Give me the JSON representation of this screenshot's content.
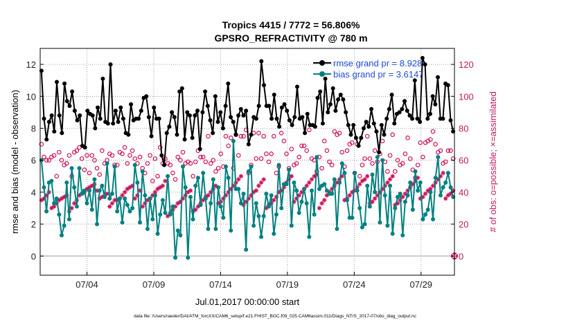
{
  "chart_data": {
    "type": "line",
    "title": "Tropics 4415 / 7772 = 56.806%",
    "subtitle": "GPSRO_REFRACTIVITY @ 780 m",
    "xlabel": "Jul.01,2017 00:00:00 start",
    "ylabel": "rmse and bias (model - observation)",
    "ylabel_right": "# of obs: o=possible; ×=assimilated",
    "footnote": "data file: /Users/raeder/DAI/ATM_forcXX/CAM6_setup/f.e21.FHIST_BGC.f09_025.CAM6assim.011/Diags_NTrS_2017-07/obs_diag_output.nc",
    "xlim": [
      0.5,
      31.5
    ],
    "ylim": [
      -1.2,
      13
    ],
    "ylim_right": [
      -12,
      130
    ],
    "xticks": [
      {
        "label": "07/04",
        "value": 4
      },
      {
        "label": "07/09",
        "value": 9
      },
      {
        "label": "07/14",
        "value": 14
      },
      {
        "label": "07/19",
        "value": 19
      },
      {
        "label": "07/24",
        "value": 24
      },
      {
        "label": "07/29",
        "value": 29
      }
    ],
    "yticks": [
      0,
      2,
      4,
      6,
      8,
      10,
      12
    ],
    "yticks_right": [
      0,
      20,
      40,
      60,
      80,
      100,
      120
    ],
    "legend": [
      "rmse grand pr = 8.928",
      "bias grand pr = 3.6147"
    ],
    "colors": {
      "rmse": "#000000",
      "bias": "#008080",
      "obs": "#d0145a"
    },
    "series": [
      {
        "name": "rmse grand pr = 8.928",
        "axis": "left",
        "values": [
          11.6,
          8.6,
          7.3,
          8.4,
          8.8,
          7.8,
          10.9,
          8.8,
          7.7,
          10.8,
          9.7,
          9.4,
          10.3,
          9.1,
          8.5,
          8.8,
          6.9,
          6.8,
          9.1,
          8.9,
          8.8,
          8.0,
          9.3,
          8.6,
          11.1,
          8.4,
          8.3,
          12.0,
          8.3,
          9.1,
          8.4,
          9.3,
          8.6,
          7.7,
          7.6,
          9.5,
          8.5,
          8.6,
          8.6,
          9.1,
          9.9,
          10.0,
          8.7,
          7.5,
          9.3,
          8.6,
          8.6,
          6.3,
          5.7,
          7.7,
          8.1,
          9.0,
          8.7,
          7.6,
          10.3,
          10.5,
          7.3,
          9.0,
          8.8,
          7.4,
          8.8,
          9.1,
          6.7,
          9.0,
          10.3,
          9.4,
          8.5,
          7.7,
          10.0,
          8.4,
          9.0,
          8.0,
          9.4,
          10.8,
          8.7,
          8.4,
          7.6,
          8.8,
          9.2,
          8.8,
          9.1,
          7.0,
          7.6,
          8.7,
          8.6,
          9.4,
          12.2,
          10.7,
          9.4,
          9.4,
          8.6,
          10.1,
          8.6,
          8.1,
          9.3,
          9.5,
          9.1,
          8.5,
          8.2,
          8.7,
          10.6,
          8.6,
          8.7,
          7.7,
          8.9,
          8.2,
          8.2,
          8.1,
          9.9,
          10.3,
          8.3,
          11.1,
          9.0,
          9.5,
          10.5,
          9.1,
          9.8,
          10.1,
          9.8,
          9.0,
          8.2,
          7.6,
          8.2,
          7.4,
          6.9,
          7.4,
          8.0,
          8.4,
          8.1,
          9.2,
          8.3,
          7.8,
          6.5,
          8.2,
          7.6,
          8.6,
          9.2,
          10.1,
          8.3,
          8.9,
          9.0,
          9.2,
          9.7,
          9.1,
          8.8,
          8.6,
          11.0,
          8.6,
          8.4,
          12.4,
          12.0,
          8.6,
          8.9,
          10.0,
          9.5,
          11.2,
          8.6,
          8.6,
          10.8,
          10.7,
          8.5,
          7.8
        ]
      },
      {
        "name": "bias grand pr = 3.6147",
        "axis": "left",
        "values": [
          6.0,
          4.3,
          2.8,
          4.6,
          4.7,
          3.3,
          3.6,
          2.6,
          1.3,
          1.9,
          4.6,
          2.3,
          5.5,
          4.3,
          3.1,
          5.5,
          3.9,
          4.1,
          3.3,
          4.1,
          2.9,
          4.8,
          2.0,
          4.1,
          4.4,
          3.7,
          5.8,
          3.6,
          3.9,
          5.6,
          2.8,
          3.6,
          2.1,
          3.6,
          3.2,
          2.8,
          3.0,
          5.7,
          4.6,
          2.1,
          5.3,
          3.8,
          1.7,
          3.6,
          2.3,
          3.8,
          1.4,
          2.6,
          3.5,
          2.7,
          5.0,
          2.6,
          3.1,
          -0.1,
          1.6,
          1.3,
          5.6,
          4.3,
          -0.1,
          3.7,
          2.3,
          4.4,
          4.9,
          3.2,
          5.2,
          3.6,
          1.7,
          3.3,
          4.8,
          1.7,
          4.3,
          3.1,
          2.4,
          5.6,
          4.9,
          1.6,
          7.2,
          4.2,
          4.2,
          3.3,
          3.9,
          0.4,
          5.3,
          5.6,
          1.9,
          3.3,
          2.5,
          1.2,
          2.5,
          3.9,
          3.1,
          3.8,
          1.4,
          2.6,
          5.7,
          3.0,
          4.5,
          4.5,
          5.4,
          1.9,
          4.6,
          4.1,
          2.7,
          3.4,
          4.2,
          3.3,
          1.2,
          4.1,
          2.6,
          6.2,
          4.2,
          4.4,
          4.5,
          4.1,
          3.9,
          3.9,
          4.8,
          1.7,
          4.6,
          5.8,
          5.2,
          3.5,
          2.4,
          2.4,
          5.2,
          4.1,
          3.0,
          1.8,
          2.0,
          4.4,
          3.1,
          5.1,
          4.0,
          6.2,
          2.1,
          6.0,
          3.8,
          1.9,
          4.4,
          1.4,
          3.0,
          3.7,
          3.9,
          1.3,
          3.4,
          3.8,
          4.6,
          2.9,
          5.3,
          4.1,
          4.6,
          2.3,
          2.6,
          2.9,
          4.0,
          2.3,
          4.9,
          6.2,
          3.8,
          4.3,
          4.6,
          5.2,
          4.3,
          3.7
        ]
      },
      {
        "name": "possible",
        "axis": "right",
        "values": [
          70,
          62,
          60,
          60,
          62,
          63,
          50,
          65,
          60,
          57,
          58,
          63,
          50,
          65,
          66,
          68,
          61,
          54,
          63,
          52,
          63,
          60,
          55,
          51,
          66,
          58,
          60,
          64,
          63,
          57,
          57,
          65,
          64,
          68,
          58,
          63,
          66,
          61,
          58,
          62,
          55,
          52,
          58,
          63,
          47,
          61,
          50,
          68,
          58,
          61,
          58,
          57,
          52,
          48,
          62,
          60,
          65,
          58,
          59,
          58,
          50,
          59,
          66,
          62,
          62,
          59,
          75,
          58,
          60,
          53,
          55,
          64,
          56,
          75,
          69,
          74,
          55,
          76,
          63,
          75,
          75,
          79,
          52,
          57,
          77,
          61,
          77,
          61,
          75,
          64,
          59,
          64,
          75,
          52,
          56,
          77,
          72,
          64,
          55,
          67,
          57,
          58,
          62,
          69,
          69,
          66,
          79,
          61,
          60,
          53,
          62,
          55,
          72,
          66,
          59,
          57,
          78,
          76,
          77,
          65,
          56,
          66,
          70,
          71,
          52,
          70,
          50,
          57,
          61,
          75,
          61,
          58,
          66,
          59,
          64,
          72,
          59,
          53,
          63,
          76,
          53,
          60,
          57,
          58,
          64,
          74,
          61,
          54,
          49,
          57,
          71,
          62,
          71,
          72,
          73,
          78,
          70,
          65,
          66,
          58,
          59,
          66,
          66,
          61
        ]
      },
      {
        "name": "assimilated",
        "axis": "right",
        "values": [
          35,
          36,
          38,
          40,
          30,
          31,
          33,
          35,
          36,
          37,
          38,
          28,
          30,
          33,
          35,
          38,
          39,
          40,
          42,
          43,
          44,
          45,
          41,
          36,
          37,
          38,
          39,
          31,
          33,
          35,
          35,
          36,
          38,
          40,
          42,
          43,
          44,
          36,
          38,
          41,
          31,
          33,
          35,
          36,
          38,
          40,
          42,
          43,
          44,
          47,
          25,
          27,
          29,
          31,
          33,
          34,
          36,
          38,
          40,
          41,
          28,
          29,
          31,
          33,
          35,
          37,
          38,
          40,
          42,
          44,
          33,
          34,
          36,
          38,
          40,
          42,
          44,
          46,
          48,
          50,
          32,
          34,
          36,
          38,
          40,
          41,
          44,
          46,
          48,
          30,
          32,
          33,
          35,
          37,
          40,
          41,
          43,
          46,
          48,
          50,
          34,
          36,
          38,
          40,
          42,
          44,
          46,
          48,
          50,
          51,
          30,
          33,
          35,
          38,
          40,
          42,
          44,
          46,
          48,
          50,
          35,
          36,
          38,
          40,
          41,
          43,
          45,
          47,
          48,
          50,
          33,
          34,
          36,
          38,
          40,
          42,
          44,
          46,
          48,
          50,
          32,
          33,
          35,
          37,
          39,
          41,
          43,
          45,
          47,
          49,
          36,
          37,
          39,
          41,
          42,
          44,
          46,
          48,
          50,
          52,
          36,
          38,
          39,
          41
        ]
      }
    ],
    "endpoint_marker": {
      "x": 31.5,
      "value": 0
    }
  }
}
